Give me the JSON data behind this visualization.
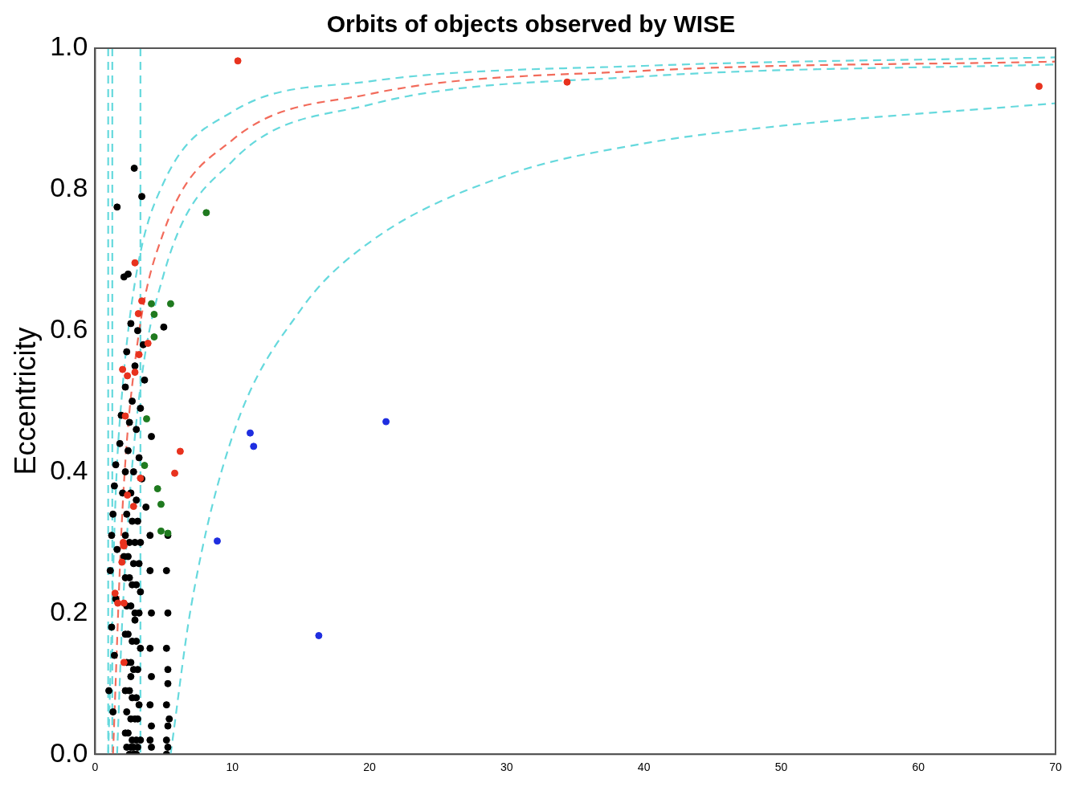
{
  "chart_data": {
    "type": "scatter",
    "title": "Orbits of objects observed by WISE",
    "ylabel": "Eccentricity",
    "xlim": [
      0,
      70
    ],
    "xticks": [
      0,
      10,
      20,
      30,
      40,
      50,
      60,
      70
    ],
    "ylim": [
      0,
      1
    ],
    "yticks": [
      {
        "value": 0,
        "label": "0.0"
      },
      {
        "value": 0.2,
        "label": "0.2"
      },
      {
        "value": 0.4,
        "label": "0.4"
      },
      {
        "value": 0.6,
        "label": "0.6"
      },
      {
        "value": 0.8,
        "label": "0.8"
      },
      {
        "value": 1,
        "label": "1.0"
      }
    ],
    "grid": false,
    "legend": false,
    "marker": "circle",
    "ref_lines": [
      {
        "axis": "x",
        "value": 0.95,
        "color": "#66d9dd",
        "line_style": "dashed"
      },
      {
        "axis": "x",
        "value": 1.25,
        "color": "#66d9dd",
        "line_style": "dashed"
      },
      {
        "axis": "x",
        "value": 3.3,
        "color": "#66d9dd",
        "line_style": "dashed"
      }
    ],
    "series": [
      {
        "type": "line",
        "color": "#66d9dd",
        "marker": "none",
        "line_style": "dashed",
        "x": [
          0.95,
          1.5,
          2,
          3,
          5,
          10,
          20,
          40,
          70
        ],
        "values": [
          0,
          0.37,
          0.52,
          0.68,
          0.81,
          0.91,
          0.953,
          0.975,
          0.987
        ]
      },
      {
        "type": "line",
        "color": "#f26b5b",
        "marker": "none",
        "line_style": "dashed",
        "x": [
          1.3,
          2,
          3,
          5,
          10,
          20,
          40,
          70
        ],
        "values": [
          0,
          0.35,
          0.57,
          0.74,
          0.87,
          0.935,
          0.968,
          0.981
        ]
      },
      {
        "type": "line",
        "color": "#66d9dd",
        "marker": "none",
        "line_style": "dashed",
        "x": [
          1.6,
          2,
          3,
          5,
          10,
          20,
          40,
          70
        ],
        "values": [
          0,
          0.2,
          0.47,
          0.68,
          0.84,
          0.92,
          0.96,
          0.977
        ]
      },
      {
        "type": "line",
        "color": "#66d9dd",
        "marker": "none",
        "line_style": "dashed",
        "x": [
          5.5,
          7,
          10,
          15,
          20,
          30,
          40,
          50,
          70
        ],
        "values": [
          0,
          0.21,
          0.45,
          0.63,
          0.725,
          0.82,
          0.865,
          0.89,
          0.922
        ]
      },
      {
        "type": "scatter",
        "color": "#000000",
        "x": [
          2.85,
          3.4,
          1.6,
          2.1,
          2.4,
          5.0,
          2.6,
          3.1,
          3.5,
          2.3,
          2.9,
          3.6,
          2.2,
          2.7,
          3.3,
          1.9,
          2.5,
          3.0,
          4.1,
          1.8,
          2.4,
          3.2,
          1.5,
          2.2,
          2.8,
          3.4,
          1.4,
          2.0,
          2.6,
          3.0,
          3.7,
          1.3,
          2.3,
          2.7,
          3.1,
          1.2,
          2.2,
          2.5,
          2.9,
          3.3,
          1.6,
          2.1,
          2.4,
          2.8,
          3.2,
          4.0,
          5.3,
          1.1,
          2.2,
          2.5,
          2.7,
          3.0,
          3.3,
          4.0,
          5.2,
          1.5,
          2.3,
          2.6,
          2.9,
          3.2,
          4.1,
          5.3,
          1.2,
          2.2,
          2.4,
          2.7,
          3.0,
          3.3,
          4.0,
          5.2,
          1.4,
          2.3,
          2.6,
          2.8,
          3.1,
          4.1,
          5.3,
          1.0,
          2.2,
          2.5,
          2.7,
          3.0,
          3.2,
          4.0,
          5.2,
          1.3,
          2.3,
          2.6,
          2.9,
          3.1,
          4.1,
          5.3,
          2.2,
          2.4,
          2.7,
          3.0,
          3.3,
          4.0,
          5.2,
          5.4,
          2.3,
          2.6,
          2.8,
          3.1,
          4.1,
          5.3,
          2.5,
          2.8,
          3.0,
          5.2,
          2.6,
          2.9,
          5.3
        ],
        "values": [
          0.83,
          0.79,
          0.775,
          0.676,
          0.68,
          0.605,
          0.61,
          0.6,
          0.58,
          0.57,
          0.55,
          0.53,
          0.52,
          0.5,
          0.49,
          0.48,
          0.47,
          0.46,
          0.45,
          0.44,
          0.43,
          0.42,
          0.41,
          0.4,
          0.4,
          0.39,
          0.38,
          0.37,
          0.37,
          0.36,
          0.35,
          0.34,
          0.34,
          0.33,
          0.33,
          0.31,
          0.31,
          0.3,
          0.3,
          0.3,
          0.29,
          0.28,
          0.28,
          0.27,
          0.27,
          0.31,
          0.31,
          0.26,
          0.25,
          0.25,
          0.24,
          0.24,
          0.23,
          0.26,
          0.26,
          0.22,
          0.21,
          0.21,
          0.2,
          0.2,
          0.2,
          0.2,
          0.18,
          0.17,
          0.17,
          0.16,
          0.16,
          0.15,
          0.15,
          0.15,
          0.14,
          0.13,
          0.13,
          0.12,
          0.12,
          0.11,
          0.1,
          0.09,
          0.09,
          0.09,
          0.08,
          0.08,
          0.07,
          0.07,
          0.07,
          0.06,
          0.06,
          0.05,
          0.05,
          0.05,
          0.04,
          0.04,
          0.03,
          0.03,
          0.02,
          0.02,
          0.02,
          0.02,
          0.02,
          0.05,
          0.01,
          0.01,
          0.01,
          0.01,
          0.01,
          0.01,
          0.0,
          0.0,
          0.0,
          0.0,
          0.11,
          0.19,
          0.12
        ]
      },
      {
        "type": "scatter",
        "color": "#e8321e",
        "x": [
          10.4,
          34.4,
          68.8,
          2.9,
          3.4,
          3.15,
          3.85,
          3.2,
          2.35,
          2.9,
          2.0,
          2.2,
          6.2,
          5.8,
          3.3,
          2.35,
          2.8,
          2.05,
          2.1,
          1.95,
          1.45,
          1.65,
          2.1,
          2.1
        ],
        "values": [
          0.982,
          0.952,
          0.946,
          0.696,
          0.642,
          0.624,
          0.582,
          0.566,
          0.536,
          0.541,
          0.545,
          0.479,
          0.429,
          0.398,
          0.391,
          0.367,
          0.351,
          0.3,
          0.295,
          0.272,
          0.228,
          0.214,
          0.214,
          0.13
        ]
      },
      {
        "type": "scatter",
        "color": "#1f7a1f",
        "x": [
          8.1,
          4.1,
          5.5,
          4.3,
          4.3,
          3.75,
          3.6,
          4.55,
          4.8,
          4.8,
          5.3
        ],
        "values": [
          0.767,
          0.638,
          0.638,
          0.623,
          0.591,
          0.475,
          0.409,
          0.376,
          0.354,
          0.316,
          0.313
        ]
      },
      {
        "type": "scatter",
        "color": "#1f2ee0",
        "x": [
          11.3,
          11.55,
          21.2,
          8.9,
          16.3
        ],
        "values": [
          0.455,
          0.436,
          0.471,
          0.302,
          0.168
        ]
      }
    ]
  }
}
